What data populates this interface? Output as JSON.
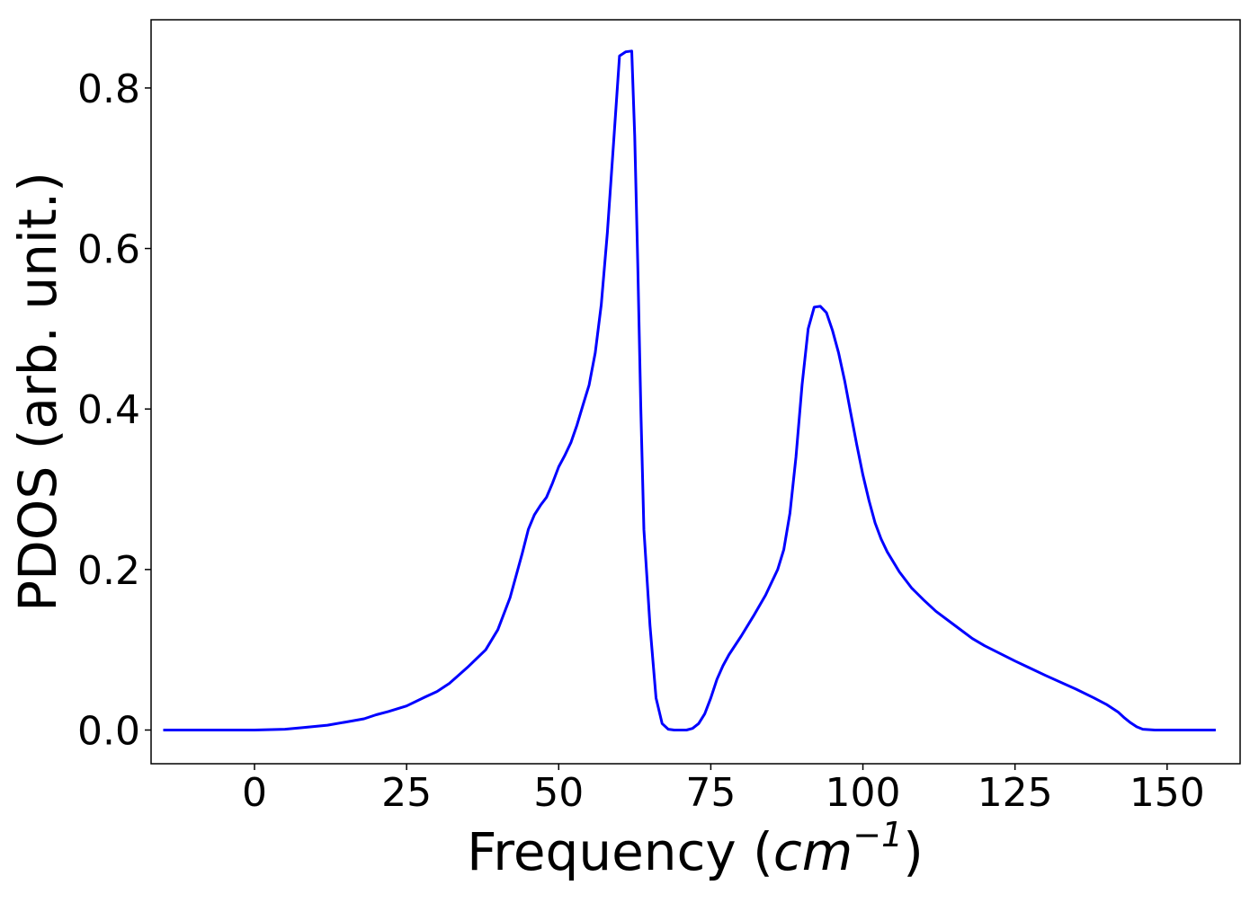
{
  "chart_data": {
    "type": "line",
    "title": "",
    "xlabel": "Frequency",
    "xlabel_unit_base": "cm",
    "xlabel_unit_exp": "−1",
    "ylabel": "PDOS (arb. unit.)",
    "xlim": [
      -17,
      162
    ],
    "ylim": [
      -0.042,
      0.885
    ],
    "xticks": [
      0,
      25,
      50,
      75,
      100,
      125,
      150
    ],
    "xtick_labels": [
      "0",
      "25",
      "50",
      "75",
      "100",
      "125",
      "150"
    ],
    "yticks": [
      0.0,
      0.2,
      0.4,
      0.6,
      0.8
    ],
    "ytick_labels": [
      "0.0",
      "0.2",
      "0.4",
      "0.6",
      "0.8"
    ],
    "grid": false,
    "legend": "none",
    "series": [
      {
        "color": "#0000ff",
        "x": [
          -15,
          -10,
          -5,
          0,
          5,
          8,
          12,
          15,
          18,
          20,
          22,
          25,
          28,
          30,
          32,
          35,
          38,
          40,
          42,
          44,
          45,
          46,
          47,
          48,
          49,
          50,
          51,
          52,
          53,
          54,
          55,
          56,
          57,
          58,
          59,
          60,
          61,
          62,
          62.5,
          63,
          63.5,
          64,
          65,
          66,
          67,
          68,
          69,
          70,
          71,
          72,
          73,
          74,
          75,
          76,
          77,
          78,
          80,
          82,
          84,
          86,
          87,
          88,
          89,
          90,
          91,
          92,
          93,
          94,
          95,
          96,
          97,
          98,
          99,
          100,
          101,
          102,
          103,
          104,
          106,
          108,
          110,
          112,
          115,
          118,
          120,
          125,
          130,
          135,
          138,
          140,
          142,
          143,
          144,
          145,
          146,
          148,
          150,
          155,
          158
        ],
        "y": [
          0.0,
          0.0,
          0.0,
          0.0,
          0.001,
          0.003,
          0.006,
          0.01,
          0.014,
          0.019,
          0.023,
          0.03,
          0.041,
          0.048,
          0.058,
          0.078,
          0.1,
          0.125,
          0.165,
          0.22,
          0.25,
          0.268,
          0.28,
          0.29,
          0.308,
          0.328,
          0.342,
          0.358,
          0.38,
          0.405,
          0.43,
          0.47,
          0.53,
          0.62,
          0.73,
          0.84,
          0.845,
          0.846,
          0.74,
          0.58,
          0.4,
          0.25,
          0.13,
          0.04,
          0.008,
          0.001,
          0.0,
          0.0,
          0.0,
          0.002,
          0.008,
          0.02,
          0.04,
          0.063,
          0.08,
          0.094,
          0.117,
          0.142,
          0.168,
          0.2,
          0.225,
          0.27,
          0.34,
          0.43,
          0.5,
          0.527,
          0.528,
          0.52,
          0.498,
          0.47,
          0.435,
          0.395,
          0.355,
          0.318,
          0.286,
          0.258,
          0.238,
          0.222,
          0.197,
          0.177,
          0.162,
          0.148,
          0.131,
          0.114,
          0.105,
          0.086,
          0.068,
          0.051,
          0.04,
          0.032,
          0.022,
          0.015,
          0.009,
          0.004,
          0.001,
          0.0,
          0.0,
          0.0,
          0.0
        ]
      }
    ]
  }
}
